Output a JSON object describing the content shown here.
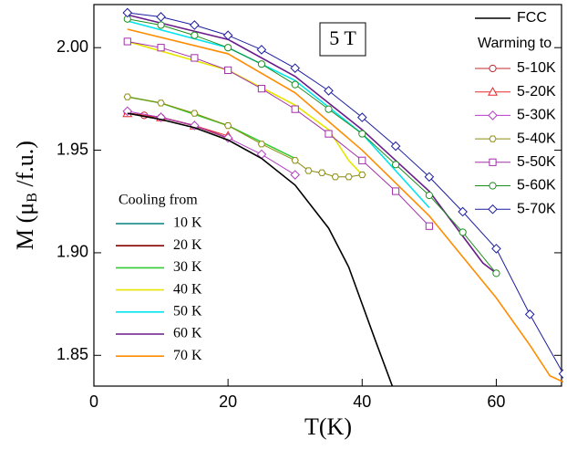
{
  "chart_data": {
    "type": "line",
    "xlabel": "T(K)",
    "ylabel": [
      "M (μ",
      "B",
      " /f.u.)"
    ],
    "annotation": "5 T",
    "xlim": [
      0,
      70
    ],
    "ylim": [
      1.835,
      2.021
    ],
    "xticks": [
      0,
      20,
      40,
      60
    ],
    "yticks": [
      {
        "value": 1.85,
        "label": "1.85"
      },
      {
        "value": 1.9,
        "label": "1.90"
      },
      {
        "value": 1.95,
        "label": "1.95"
      },
      {
        "value": 2.0,
        "label": "2.00"
      }
    ],
    "series": [
      {
        "name": "FCC",
        "color": "#000000",
        "marker": null,
        "x": [
          5,
          10,
          15,
          20,
          25,
          30,
          35,
          38,
          40,
          42,
          44.5
        ],
        "values": [
          1.968,
          1.965,
          1.961,
          1.955,
          1.946,
          1.933,
          1.912,
          1.893,
          1.875,
          1.857,
          1.835
        ]
      }
    ],
    "warming": {
      "title": "Warming to",
      "series": [
        {
          "name": "5-10K",
          "color": "#c0282d",
          "marker": "circle",
          "x": [
            5,
            7.5,
            10
          ],
          "values": [
            1.968,
            1.967,
            1.966
          ]
        },
        {
          "name": "5-20K",
          "color": "#e8282d",
          "marker": "triangle",
          "x": [
            5,
            10,
            15,
            20
          ],
          "values": [
            1.968,
            1.966,
            1.962,
            1.957
          ]
        },
        {
          "name": "5-30K",
          "color": "#b23ec4",
          "marker": "diamond",
          "x": [
            5,
            10,
            15,
            20,
            25,
            30
          ],
          "values": [
            1.969,
            1.966,
            1.962,
            1.956,
            1.948,
            1.938
          ]
        },
        {
          "name": "5-40K",
          "color": "#8c8c10",
          "marker": "hexagon",
          "x": [
            5,
            10,
            15,
            20,
            25,
            30,
            32,
            34,
            36,
            38,
            40
          ],
          "values": [
            1.976,
            1.973,
            1.968,
            1.962,
            1.953,
            1.945,
            1.94,
            1.939,
            1.937,
            1.937,
            1.938
          ]
        },
        {
          "name": "5-50K",
          "color": "#a030a8",
          "marker": "square",
          "x": [
            5,
            10,
            15,
            20,
            25,
            30,
            35,
            40,
            45,
            50
          ],
          "values": [
            2.003,
            2.0,
            1.995,
            1.989,
            1.98,
            1.97,
            1.958,
            1.945,
            1.93,
            1.913
          ]
        },
        {
          "name": "5-60K",
          "color": "#1e8c1e",
          "marker": "circle",
          "x": [
            5,
            10,
            15,
            20,
            25,
            30,
            35,
            40,
            45,
            50,
            55,
            60
          ],
          "values": [
            2.014,
            2.011,
            2.006,
            2.0,
            1.992,
            1.982,
            1.97,
            1.958,
            1.943,
            1.928,
            1.91,
            1.89
          ]
        },
        {
          "name": "5-70K",
          "color": "#1c1ca0",
          "marker": "diamond",
          "x": [
            5,
            10,
            15,
            20,
            25,
            30,
            35,
            40,
            45,
            50,
            55,
            60,
            65,
            70
          ],
          "values": [
            2.017,
            2.015,
            2.011,
            2.006,
            1.999,
            1.99,
            1.979,
            1.966,
            1.952,
            1.937,
            1.92,
            1.902,
            1.87,
            1.841
          ]
        }
      ]
    },
    "cooling": {
      "title": "Cooling from",
      "series": [
        {
          "name": "10 K",
          "color": "#008080",
          "marker": null,
          "x": [
            5,
            10
          ],
          "values": [
            1.968,
            1.966
          ]
        },
        {
          "name": "20 K",
          "color": "#8b0000",
          "marker": null,
          "x": [
            5,
            10,
            15,
            20
          ],
          "values": [
            1.968,
            1.966,
            1.962,
            1.956
          ]
        },
        {
          "name": "30 K",
          "color": "#33cc33",
          "marker": null,
          "x": [
            5,
            10,
            20,
            30
          ],
          "values": [
            1.976,
            1.973,
            1.962,
            1.946
          ]
        },
        {
          "name": "40 K",
          "color": "#e6e600",
          "marker": null,
          "x": [
            5,
            20,
            30,
            35,
            38,
            40
          ],
          "values": [
            2.003,
            1.989,
            1.972,
            1.96,
            1.945,
            1.938
          ]
        },
        {
          "name": "50 K",
          "color": "#00e5ee",
          "marker": null,
          "x": [
            5,
            20,
            30,
            40,
            50
          ],
          "values": [
            2.013,
            2.0,
            1.984,
            1.958,
            1.922
          ]
        },
        {
          "name": "60 K",
          "color": "#6a1b8a",
          "marker": null,
          "x": [
            5,
            20,
            30,
            40,
            50,
            58,
            60
          ],
          "values": [
            2.016,
            2.004,
            1.986,
            1.96,
            1.93,
            1.895,
            1.89
          ]
        },
        {
          "name": "70 K",
          "color": "#ff8c00",
          "marker": null,
          "x": [
            5,
            20,
            30,
            40,
            50,
            60,
            65,
            68,
            70
          ],
          "values": [
            2.009,
            1.997,
            1.978,
            1.95,
            1.918,
            1.878,
            1.855,
            1.84,
            1.837
          ]
        }
      ]
    }
  }
}
